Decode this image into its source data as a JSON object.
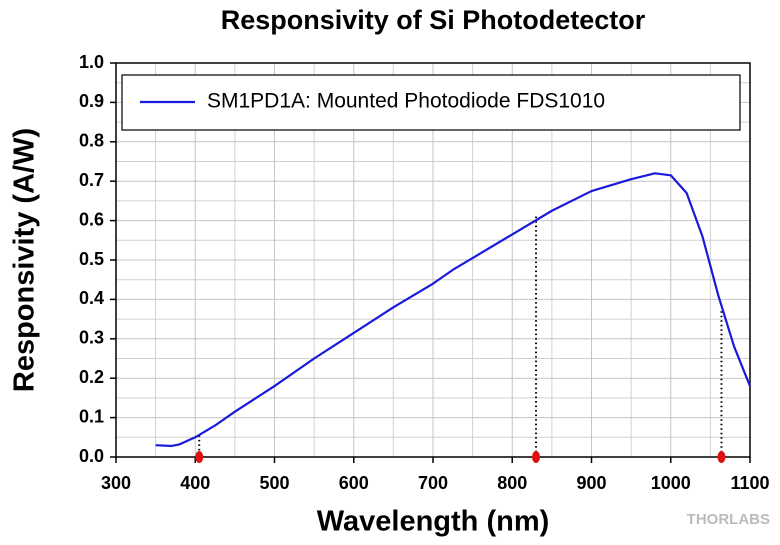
{
  "chart_data": {
    "type": "line",
    "title": "Responsivity of Si Photodetector",
    "xlabel": "Wavelength (nm)",
    "ylabel": "Responsivity (A/W)",
    "watermark": "THORLABS",
    "xlim": [
      300,
      1100
    ],
    "ylim": [
      0,
      1
    ],
    "xticks": [
      300,
      400,
      500,
      600,
      700,
      800,
      900,
      1000,
      1100
    ],
    "yticks": [
      {
        "value": 0,
        "label": "0.0"
      },
      0.1,
      0.2,
      0.3,
      0.4,
      0.5,
      0.6,
      0.7,
      0.8,
      0.9,
      {
        "value": 1,
        "label": "1.0"
      }
    ],
    "grid": true,
    "minor_grid": true,
    "legend": "top",
    "x": [
      350,
      370,
      380,
      400,
      425,
      450,
      500,
      550,
      600,
      650,
      700,
      725,
      750,
      800,
      850,
      900,
      950,
      980,
      1000,
      1020,
      1040,
      1060,
      1080,
      1100
    ],
    "series": [
      {
        "name": "SM1PD1A: Mounted Photodiode FDS1010",
        "color": "#1a1adb",
        "values": [
          0.03,
          0.028,
          0.032,
          0.05,
          0.08,
          0.115,
          0.18,
          0.25,
          0.315,
          0.38,
          0.44,
          0.475,
          0.505,
          0.565,
          0.625,
          0.675,
          0.705,
          0.72,
          0.715,
          0.67,
          0.56,
          0.41,
          0.28,
          0.18
        ]
      }
    ],
    "highlight_x": [
      405,
      830,
      1064
    ],
    "highlight_values": [
      0.055,
      0.61,
      0.37
    ],
    "highlight_color": "#e01010"
  }
}
